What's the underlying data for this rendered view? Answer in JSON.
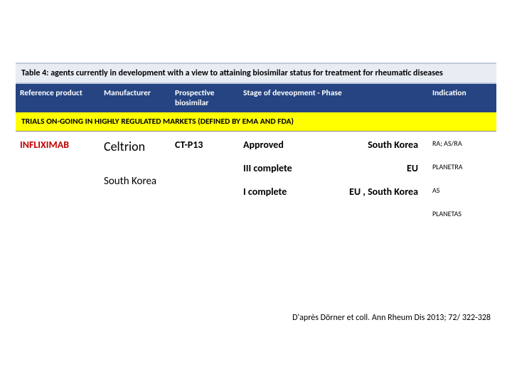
{
  "title": "Table 4: agents currently in development with a view to attaining  biosimilar status for treatment for rheumatic diseases",
  "headers": {
    "ref": "Reference product",
    "mfr": "Manufacturer",
    "pro": "Prospective biosimilar",
    "stage": "Stage of deveopment  - Phase",
    "ind": "Indication"
  },
  "section": "TRIALS ON-GOING IN HIGHLY REGULATED MARKETS (DEFINED BY EMA AND FDA)",
  "row": {
    "ref": "INFLIXIMAB",
    "mfr": "Celtrion",
    "mfr_country": "South Korea",
    "pro": "CT-P13",
    "stages": [
      {
        "phase": "Approved",
        "region": "South Korea"
      },
      {
        "phase": "III   complete",
        "region": "EU"
      },
      {
        "phase": "I    complete",
        "region": "EU , South Korea"
      }
    ],
    "indications": [
      "RA; AS/RA",
      "PLANETRA",
      "AS",
      "PLANETAS"
    ]
  },
  "citation": "D'après Dörner et coll. Ann Rheum Dis 2013; 72/ 322-328"
}
